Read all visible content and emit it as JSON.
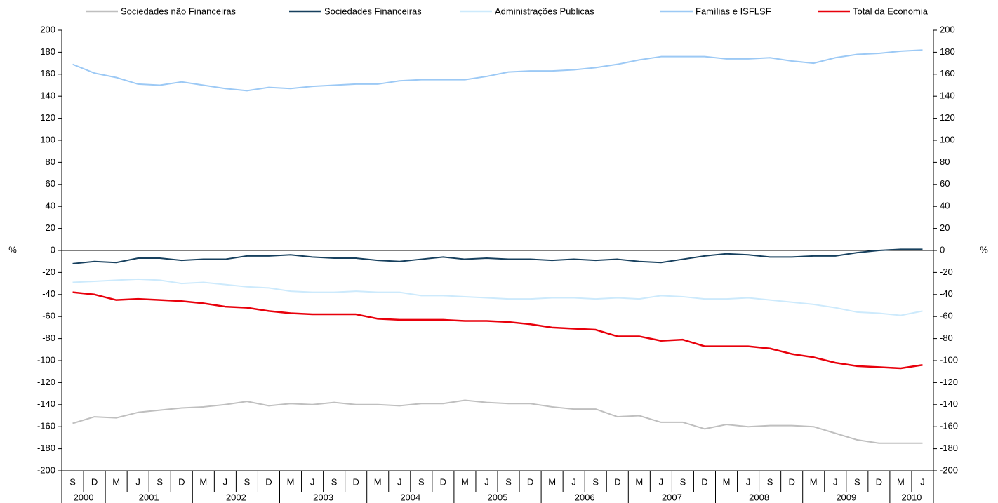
{
  "chart_data": {
    "type": "line",
    "ylabel": "%",
    "y2label": "%",
    "ylim": [
      -200,
      200
    ],
    "yticks": [
      -200,
      -180,
      -160,
      -140,
      -120,
      -100,
      -80,
      -60,
      -40,
      -20,
      0,
      20,
      40,
      60,
      80,
      100,
      120,
      140,
      160,
      180,
      200
    ],
    "y2lim": [
      -200,
      200
    ],
    "y2ticks": [
      -200,
      -180,
      -160,
      -140,
      -120,
      -100,
      -80,
      -60,
      -40,
      -20,
      0,
      20,
      40,
      60,
      80,
      100,
      120,
      140,
      160,
      180,
      200
    ],
    "category_groups": [
      {
        "label": "2000",
        "categories": [
          "S",
          "D"
        ]
      },
      {
        "label": "2001",
        "categories": [
          "M",
          "J",
          "S",
          "D"
        ]
      },
      {
        "label": "2002",
        "categories": [
          "M",
          "J",
          "S",
          "D"
        ]
      },
      {
        "label": "2003",
        "categories": [
          "M",
          "J",
          "S",
          "D"
        ]
      },
      {
        "label": "2004",
        "categories": [
          "M",
          "J",
          "S",
          "D"
        ]
      },
      {
        "label": "2005",
        "categories": [
          "M",
          "J",
          "S",
          "D"
        ]
      },
      {
        "label": "2006",
        "categories": [
          "M",
          "J",
          "S",
          "D"
        ]
      },
      {
        "label": "2007",
        "categories": [
          "M",
          "J",
          "S",
          "D"
        ]
      },
      {
        "label": "2008",
        "categories": [
          "M",
          "J",
          "S",
          "D"
        ]
      },
      {
        "label": "2009",
        "categories": [
          "M",
          "J",
          "S",
          "D"
        ]
      },
      {
        "label": "2010",
        "categories": [
          "M",
          "J"
        ]
      }
    ],
    "series": [
      {
        "name": "Sociedades não Financeiras",
        "color": "#bfbfbf",
        "values": [
          -157,
          -151,
          -152,
          -147,
          -145,
          -143,
          -142,
          -140,
          -137,
          -141,
          -139,
          -140,
          -138,
          -140,
          -140,
          -141,
          -139,
          -139,
          -136,
          -138,
          -139,
          -139,
          -142,
          -144,
          -144,
          -151,
          -150,
          -156,
          -156,
          -162,
          -158,
          -160,
          -159,
          -159,
          -160,
          -166,
          -172,
          -175,
          -175,
          -175
        ]
      },
      {
        "name": "Sociedades Financeiras",
        "color": "#17405e",
        "values": [
          -12,
          -10,
          -11,
          -7,
          -7,
          -9,
          -8,
          -8,
          -5,
          -5,
          -4,
          -6,
          -7,
          -7,
          -9,
          -10,
          -8,
          -6,
          -8,
          -7,
          -8,
          -8,
          -9,
          -8,
          -9,
          -8,
          -10,
          -11,
          -8,
          -5,
          -3,
          -4,
          -6,
          -6,
          -5,
          -5,
          -2,
          0,
          1,
          1
        ]
      },
      {
        "name": "Administrações Públicas",
        "color": "#cdeafc",
        "values": [
          -29,
          -28,
          -27,
          -26,
          -27,
          -30,
          -29,
          -31,
          -33,
          -34,
          -37,
          -38,
          -38,
          -37,
          -38,
          -38,
          -41,
          -41,
          -42,
          -43,
          -44,
          -44,
          -43,
          -43,
          -44,
          -43,
          -44,
          -41,
          -42,
          -44,
          -44,
          -43,
          -45,
          -47,
          -49,
          -52,
          -56,
          -57,
          -59,
          -55
        ]
      },
      {
        "name": "Famílias e ISFLSF",
        "color": "#9cc9f5",
        "values": [
          169,
          161,
          157,
          151,
          150,
          153,
          150,
          147,
          145,
          148,
          147,
          149,
          150,
          151,
          151,
          154,
          155,
          155,
          155,
          158,
          162,
          163,
          163,
          164,
          166,
          169,
          173,
          176,
          176,
          176,
          174,
          174,
          175,
          172,
          170,
          175,
          178,
          179,
          181,
          182
        ]
      },
      {
        "name": "Total da Economia",
        "color": "#e8000b",
        "values": [
          -38,
          -40,
          -45,
          -44,
          -45,
          -46,
          -48,
          -51,
          -52,
          -55,
          -57,
          -58,
          -58,
          -58,
          -62,
          -63,
          -63,
          -63,
          -64,
          -64,
          -65,
          -67,
          -70,
          -71,
          -72,
          -78,
          -78,
          -82,
          -81,
          -87,
          -87,
          -87,
          -89,
          -94,
          -97,
          -102,
          -105,
          -106,
          -107,
          -104
        ]
      }
    ]
  }
}
